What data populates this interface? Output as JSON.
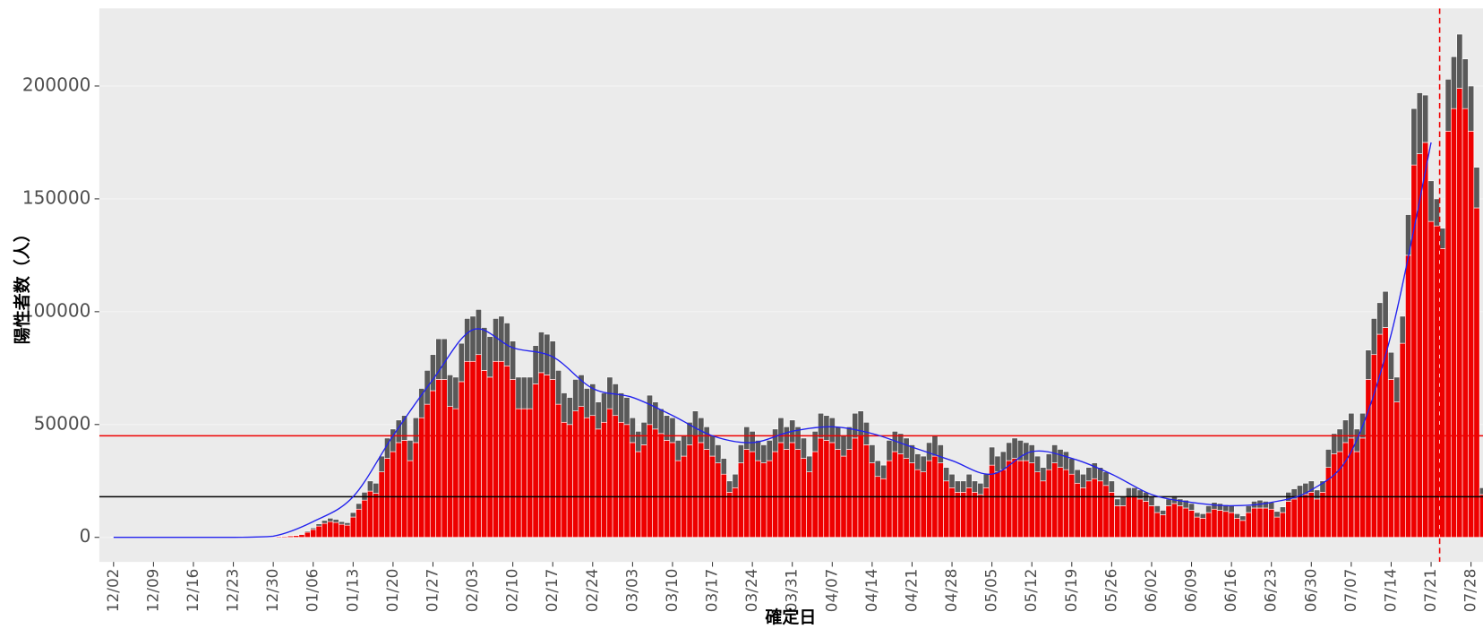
{
  "chart_data": {
    "type": "bar",
    "stacked": true,
    "x_label": "確定日",
    "y_label": "陽性者数（人）",
    "ylim": [
      -10900,
      234400
    ],
    "yticks": [
      0,
      50000,
      100000,
      150000,
      200000
    ],
    "xlim": [
      -2.5,
      240.1
    ],
    "grid": true,
    "categories": [
      "12/02",
      null,
      null,
      null,
      null,
      null,
      null,
      "12/09",
      null,
      null,
      null,
      null,
      null,
      null,
      "12/16",
      null,
      null,
      null,
      null,
      null,
      null,
      "12/23",
      null,
      null,
      null,
      null,
      null,
      null,
      "12/30",
      null,
      null,
      null,
      null,
      null,
      null,
      "01/06",
      null,
      null,
      null,
      null,
      null,
      null,
      "01/13",
      null,
      null,
      null,
      null,
      null,
      null,
      "01/20",
      null,
      null,
      null,
      null,
      null,
      null,
      "01/27",
      null,
      null,
      null,
      null,
      null,
      null,
      "02/03",
      null,
      null,
      null,
      null,
      null,
      null,
      "02/10",
      null,
      null,
      null,
      null,
      null,
      null,
      "02/17",
      null,
      null,
      null,
      null,
      null,
      null,
      "02/24",
      null,
      null,
      null,
      null,
      null,
      null,
      "03/03",
      null,
      null,
      null,
      null,
      null,
      null,
      "03/10",
      null,
      null,
      null,
      null,
      null,
      null,
      "03/17",
      null,
      null,
      null,
      null,
      null,
      null,
      "03/24",
      null,
      null,
      null,
      null,
      null,
      null,
      "03/31",
      null,
      null,
      null,
      null,
      null,
      null,
      "04/07",
      null,
      null,
      null,
      null,
      null,
      null,
      "04/14",
      null,
      null,
      null,
      null,
      null,
      null,
      "04/21",
      null,
      null,
      null,
      null,
      null,
      null,
      "04/28",
      null,
      null,
      null,
      null,
      null,
      null,
      "05/05",
      null,
      null,
      null,
      null,
      null,
      null,
      "05/12",
      null,
      null,
      null,
      null,
      null,
      null,
      "05/19",
      null,
      null,
      null,
      null,
      null,
      null,
      "05/26",
      null,
      null,
      null,
      null,
      null,
      null,
      "06/02",
      null,
      null,
      null,
      null,
      null,
      null,
      "06/09",
      null,
      null,
      null,
      null,
      null,
      null,
      "06/16",
      null,
      null,
      null,
      null,
      null,
      null,
      "06/23",
      null,
      null,
      null,
      null,
      null,
      null,
      "06/30",
      null,
      null,
      null,
      null,
      null,
      null,
      "07/07",
      null,
      null,
      null,
      null,
      null,
      null,
      "07/14",
      null,
      null,
      null,
      null,
      null,
      null,
      "07/21",
      null,
      null,
      null,
      null,
      null,
      null,
      "07/28",
      null,
      null
    ],
    "series": [
      {
        "color": "#ee0000",
        "values": [
          80,
          100,
          90,
          100,
          80,
          70,
          90,
          100,
          100,
          110,
          100,
          90,
          80,
          100,
          120,
          130,
          120,
          140,
          110,
          100,
          130,
          160,
          180,
          180,
          200,
          160,
          210,
          240,
          320,
          400,
          480,
          640,
          800,
          1200,
          2300,
          3500,
          5000,
          6200,
          7000,
          6600,
          5800,
          5400,
          9000,
          12500,
          16500,
          20500,
          19500,
          29000,
          35000,
          38000,
          42000,
          43000,
          34000,
          42000,
          53000,
          59000,
          65000,
          70000,
          70000,
          58000,
          57000,
          69000,
          78000,
          78000,
          81000,
          74000,
          71000,
          78000,
          78000,
          76000,
          70000,
          57000,
          57000,
          57000,
          68000,
          73000,
          72000,
          70000,
          59000,
          51000,
          50000,
          56000,
          58000,
          53000,
          54000,
          48000,
          51000,
          57000,
          54000,
          51000,
          50000,
          42000,
          38000,
          41000,
          50000,
          48000,
          46000,
          43000,
          42000,
          34000,
          36000,
          41000,
          45000,
          42000,
          39000,
          36000,
          33000,
          28000,
          20000,
          22000,
          33000,
          39000,
          38000,
          34000,
          33000,
          34000,
          38000,
          42000,
          39000,
          42000,
          39000,
          35000,
          29000,
          38000,
          44000,
          43000,
          42000,
          39000,
          36000,
          39000,
          44000,
          45000,
          41000,
          33000,
          27000,
          26000,
          34000,
          38000,
          37000,
          35000,
          33000,
          30000,
          29000,
          34000,
          36000,
          33000,
          25000,
          22000,
          20000,
          20000,
          22000,
          20000,
          19000,
          22000,
          32000,
          29000,
          30000,
          34000,
          35000,
          34000,
          34000,
          33000,
          29000,
          25000,
          30000,
          33000,
          31000,
          30000,
          28000,
          24000,
          22000,
          25000,
          26000,
          25000,
          23000,
          20000,
          14000,
          14000,
          18000,
          18000,
          17000,
          16000,
          14000,
          11000,
          10000,
          14000,
          15000,
          14000,
          13000,
          12000,
          9000,
          8500,
          11000,
          12500,
          12000,
          11500,
          11000,
          8500,
          7500,
          11000,
          13000,
          13000,
          13000,
          12500,
          9000,
          11000,
          16000,
          17000,
          18000,
          19000,
          20000,
          17000,
          20000,
          31000,
          37000,
          38000,
          42000,
          44000,
          38000,
          44000,
          70000,
          81000,
          90000,
          93000,
          70000,
          60000,
          86000,
          125000,
          165000,
          170000,
          175000,
          140000,
          138000,
          128000,
          180000,
          190000,
          199000,
          190000,
          180000,
          146000,
          19000
        ]
      },
      {
        "color": "#595959",
        "values": [
          20,
          20,
          20,
          30,
          20,
          20,
          20,
          20,
          30,
          30,
          20,
          20,
          20,
          20,
          30,
          30,
          30,
          30,
          30,
          30,
          30,
          40,
          40,
          50,
          50,
          40,
          50,
          60,
          80,
          100,
          120,
          160,
          200,
          300,
          500,
          700,
          1000,
          1300,
          1500,
          1400,
          1200,
          1100,
          2000,
          2500,
          3500,
          4500,
          4500,
          7000,
          9000,
          10000,
          10000,
          11000,
          9000,
          11000,
          13000,
          15000,
          16000,
          18000,
          18000,
          14000,
          14000,
          17000,
          19000,
          20000,
          20000,
          19000,
          18000,
          19000,
          20000,
          19000,
          17000,
          14000,
          14000,
          14000,
          17000,
          18000,
          18000,
          17000,
          15000,
          13000,
          12000,
          14000,
          14000,
          13000,
          14000,
          12000,
          13000,
          14000,
          14000,
          13000,
          12000,
          11000,
          9000,
          10000,
          13000,
          12000,
          11000,
          11000,
          11000,
          9000,
          9000,
          10000,
          11000,
          11000,
          10000,
          9000,
          8000,
          7000,
          5000,
          6000,
          8000,
          10000,
          9000,
          9000,
          8000,
          9000,
          10000,
          11000,
          10000,
          10000,
          10000,
          9000,
          7000,
          9000,
          11000,
          11000,
          11000,
          10000,
          9000,
          10000,
          11000,
          11000,
          10000,
          8000,
          7000,
          6000,
          9000,
          9000,
          9000,
          9000,
          8000,
          7000,
          7000,
          8000,
          9000,
          8000,
          6000,
          6000,
          5000,
          5000,
          6000,
          5000,
          5000,
          6000,
          8000,
          7000,
          8000,
          8000,
          9000,
          9000,
          8000,
          8000,
          7000,
          6000,
          7000,
          8000,
          8000,
          8000,
          7000,
          6000,
          6000,
          6000,
          7000,
          6000,
          6000,
          5000,
          3000,
          4000,
          4000,
          4000,
          4000,
          4000,
          4000,
          3000,
          2000,
          3000,
          3500,
          3000,
          3500,
          3000,
          2000,
          2000,
          3000,
          3000,
          3000,
          3000,
          3000,
          2000,
          2000,
          3000,
          3000,
          3500,
          3000,
          3000,
          2500,
          2500,
          4000,
          4500,
          5000,
          5000,
          5000,
          4000,
          5000,
          8000,
          9000,
          10000,
          10000,
          11000,
          10000,
          11000,
          13000,
          16000,
          14000,
          16000,
          12000,
          11000,
          12000,
          18000,
          25000,
          27000,
          21000,
          18000,
          12000,
          9000,
          23000,
          23000,
          24000,
          22000,
          20000,
          18000,
          3000
        ]
      }
    ],
    "trend": {
      "color": "#2222ee",
      "dates": [
        "12/02",
        "12/09",
        "12/16",
        "12/23",
        "12/30",
        "01/06",
        "01/13",
        "01/20",
        "01/27",
        "02/03",
        "02/10",
        "02/17",
        "02/24",
        "03/03",
        "03/10",
        "03/17",
        "03/24",
        "03/31",
        "04/07",
        "04/14",
        "04/21",
        "04/28",
        "05/05",
        "05/12",
        "05/19",
        "05/26",
        "06/02",
        "06/09",
        "06/16",
        "06/23",
        "06/30",
        "07/07",
        "07/14",
        "07/21"
      ],
      "values": [
        0,
        0,
        0,
        0,
        500,
        7000,
        18000,
        45000,
        70000,
        92000,
        84000,
        80000,
        66000,
        62000,
        54000,
        45000,
        42000,
        47000,
        49000,
        46000,
        40000,
        34000,
        28000,
        38000,
        35000,
        28000,
        19000,
        15500,
        14000,
        15500,
        21000,
        38000,
        90000,
        175000
      ]
    },
    "hlines": [
      {
        "value": 45000,
        "color": "#ee0000"
      },
      {
        "value": 18000,
        "color": "#000000"
      }
    ],
    "vline": {
      "value": 232.5,
      "color": "#ee0000"
    }
  }
}
